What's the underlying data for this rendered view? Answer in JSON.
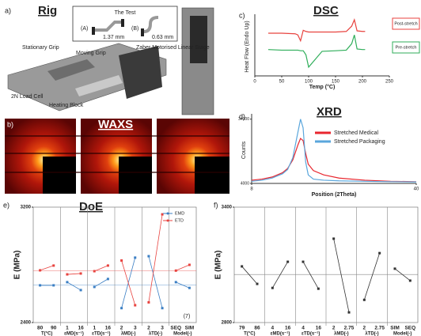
{
  "panels": {
    "a": {
      "label": "a)",
      "title": "Rig",
      "inset": {
        "title": "The Test",
        "left": "(A)",
        "left_dim": "1.37 mm",
        "right": "(B)",
        "right_dim": "0.63 mm"
      },
      "callouts": [
        "Stationary Grip",
        "Moving Grip",
        "Zaber Motorised Linear Stage",
        "2N Load Cell",
        "Heating Block"
      ]
    },
    "b": {
      "label": "b)",
      "title": "WAXS"
    }
  },
  "chart_data": [
    {
      "type": "line",
      "panel_label": "c)",
      "title": "DSC",
      "y_label": "Heat Flow (Endo Up)",
      "x_label": "Temp (°C)",
      "x": [
        25,
        50,
        75,
        80,
        85,
        90,
        95,
        100,
        125,
        150,
        170,
        180,
        185,
        190,
        200,
        205
      ],
      "series": [
        {
          "name": "Post-stretch",
          "color": "#e8433f",
          "values": [
            7.3,
            7.3,
            7.2,
            7.0,
            6.0,
            7.8,
            7.6,
            7.5,
            7.5,
            7.5,
            7.6,
            8.5,
            9.6,
            7.7,
            7.6,
            7.6
          ]
        },
        {
          "name": "Pre-stretch",
          "color": "#2fae5a",
          "values": [
            4.5,
            4.4,
            4.4,
            4.4,
            4.3,
            4.3,
            3.6,
            1.5,
            4.2,
            4.3,
            4.4,
            5.5,
            7.0,
            4.6,
            4.5,
            4.5
          ]
        }
      ],
      "xlim": [
        0,
        250
      ],
      "xticks": [
        0,
        50,
        100,
        150,
        200,
        250
      ],
      "ylim": [
        0,
        10
      ],
      "legend": "right"
    },
    {
      "type": "line",
      "panel_label": "d)",
      "title": "XRD",
      "y_label": "Counts",
      "x_label": "Position (2Theta)",
      "x": [
        8,
        10,
        12,
        14,
        15,
        16,
        17,
        17.5,
        18,
        18.5,
        19,
        20,
        22,
        25,
        30,
        35,
        40
      ],
      "series": [
        {
          "name": "Stretched Medical",
          "color": "#e8262e",
          "values": [
            5500,
            6000,
            7000,
            9000,
            11000,
            15000,
            22000,
            25000,
            24000,
            18000,
            13000,
            10000,
            8000,
            6500,
            5500,
            5000,
            4800
          ]
        },
        {
          "name": "Stretched Packaging",
          "color": "#5aa6dc",
          "values": [
            5000,
            5500,
            6500,
            8500,
            10500,
            16000,
            28000,
            34000,
            30000,
            14000,
            8000,
            6000,
            5500,
            5200,
            5000,
            4800,
            4700
          ]
        }
      ],
      "xlim": [
        8,
        40
      ],
      "xticks": [
        8,
        40
      ],
      "ylim": [
        4000,
        35000
      ],
      "yticks": [
        4000,
        34000
      ],
      "legend": "top-right"
    },
    {
      "type": "effects",
      "panel_label": "e)",
      "title": "DoE",
      "y_label": "E (MPa)",
      "annotation": "(7)",
      "groups": [
        {
          "name": "T(°C)",
          "levels": [
            "80",
            "90"
          ]
        },
        {
          "name": "εMD(s⁻¹)",
          "levels": [
            "1",
            "16"
          ]
        },
        {
          "name": "εTD(s⁻¹)",
          "levels": [
            "1",
            "16"
          ]
        },
        {
          "name": "λMD(-)",
          "levels": [
            "2",
            "3"
          ]
        },
        {
          "name": "λTD(-)",
          "levels": [
            "2",
            "3"
          ]
        },
        {
          "name": "Model(-)",
          "levels": [
            "SEQ",
            "SIM"
          ]
        }
      ],
      "series": [
        {
          "name": "EMD",
          "color": "#3b7fc4",
          "mean": 2660,
          "values": [
            [
              2658,
              2658
            ],
            [
              2680,
              2625
            ],
            [
              2647,
              2702
            ],
            [
              2500,
              2850
            ],
            [
              2860,
              2500
            ],
            [
              2680,
              2640
            ]
          ]
        },
        {
          "name": "ETD",
          "color": "#e8433f",
          "mean": 2760,
          "values": [
            [
              2762,
              2795
            ],
            [
              2734,
              2740
            ],
            [
              2756,
              2795
            ],
            [
              2830,
              2520
            ],
            [
              2540,
              3150
            ],
            [
              2760,
              2800
            ]
          ]
        }
      ],
      "ylim": [
        2400,
        3200
      ],
      "yticks": [
        2400,
        3200
      ],
      "legend": "top-right"
    },
    {
      "type": "effects",
      "panel_label": "f)",
      "y_label": "E (MPa)",
      "groups": [
        {
          "name": "T(°C)",
          "levels": [
            "79",
            "86"
          ]
        },
        {
          "name": "εMD(s⁻¹)",
          "levels": [
            "4",
            "16"
          ]
        },
        {
          "name": "εTD(s⁻¹)",
          "levels": [
            "4",
            "16"
          ]
        },
        {
          "name": "λMD(-)",
          "levels": [
            "2",
            "2.75"
          ]
        },
        {
          "name": "λTD(-)",
          "levels": [
            "2",
            "2.75"
          ]
        },
        {
          "name": "Model(-)",
          "levels": [
            "SIM",
            "SEQ"
          ]
        }
      ],
      "series": [
        {
          "color": "#333333",
          "mean": 3050,
          "values": [
            [
              3092,
              3001
            ],
            [
              2980,
              3116
            ],
            [
              3116,
              2976
            ],
            [
              3236,
              2853
            ],
            [
              2918,
              3161
            ],
            [
              3080,
              3018
            ]
          ]
        }
      ],
      "ylim": [
        2800,
        3400
      ],
      "yticks": [
        2800,
        3400
      ]
    }
  ]
}
